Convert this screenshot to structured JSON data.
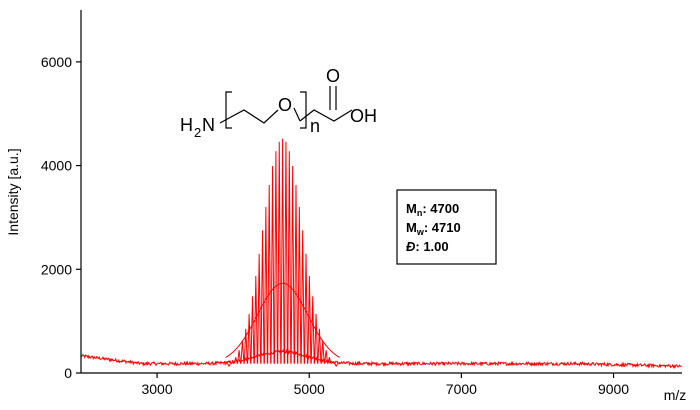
{
  "chart_data": {
    "type": "line",
    "xlabel": "m/z",
    "ylabel": "Intensity [a.u.]",
    "xlim": [
      2000,
      9900
    ],
    "ylim": [
      0,
      7000
    ],
    "x_ticks": [
      "3000",
      "5000",
      "7000",
      "9000"
    ],
    "y_ticks": [
      "0",
      "2000",
      "4000",
      "6000"
    ],
    "grid": false,
    "series": [
      {
        "color": "#ff0000",
        "distribution": {
          "peak_center": 4650,
          "peak_max": 4520,
          "peak_width": 265,
          "peak_spacing": 44,
          "envelope_max": 1550,
          "baseline_start": 330,
          "baseline": 180,
          "baseline_end": 130
        }
      }
    ],
    "annotations": {
      "structure": {
        "left_group": "H",
        "left_sub": "2",
        "left_atom": "N",
        "ring_atom": "O",
        "repeat": "n",
        "carbonyl": "O",
        "acid": "OH"
      },
      "stats": [
        {
          "label": "M",
          "sub": "n",
          "value": ": 4700"
        },
        {
          "label": "M",
          "sub": "w",
          "value": ": 4710"
        },
        {
          "label": "Đ",
          "sub": "",
          "value": ": 1.00"
        }
      ]
    }
  }
}
